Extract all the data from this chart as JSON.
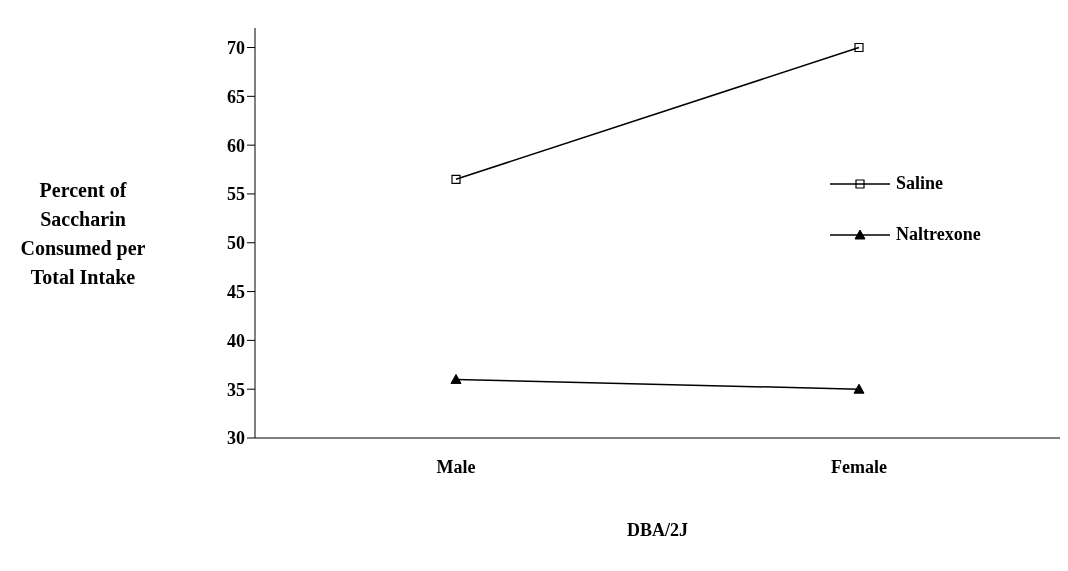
{
  "chart_data": {
    "type": "line",
    "xlabel": "DBA/2J",
    "ylabel": "Percent of Saccharin Consumed per Total Intake",
    "categories": [
      "Male",
      "Female"
    ],
    "series": [
      {
        "name": "Saline",
        "color": "#000000",
        "values": [
          56.5,
          70
        ],
        "marker": "square"
      },
      {
        "name": "Naltrexone",
        "color": "#000000",
        "values": [
          36,
          35
        ],
        "marker": "triangle"
      }
    ],
    "ylim": [
      30,
      72
    ],
    "yticks": [
      30,
      35,
      40,
      45,
      50,
      55,
      60,
      65,
      70
    ],
    "grid": false,
    "legend": "right",
    "line_style": "solid"
  }
}
